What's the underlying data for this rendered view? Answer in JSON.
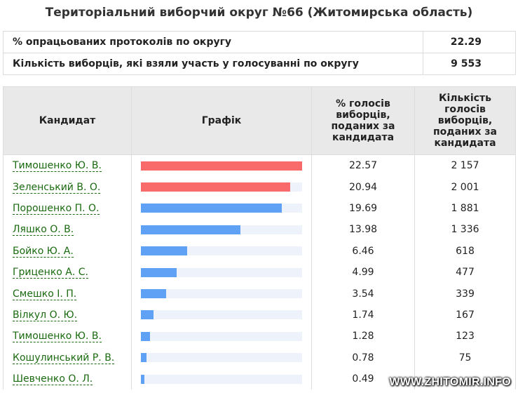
{
  "title": "Територіальний виборчий округ №66 (Житомирська область)",
  "summary": [
    {
      "label": "% опрацьованих протоколів по округу",
      "value": "22.29"
    },
    {
      "label": "Кількість виборців, які взяли участь у голосуванні по округу",
      "value": "9 553"
    }
  ],
  "headers": {
    "candidate": "Кандидат",
    "chart": "Графік",
    "percent": "% голосів виборців, поданих за кандидата",
    "count": "Кількість голосів виборців, поданих за кандидата"
  },
  "colors": {
    "leader": "#f96a6a",
    "other": "#5ea1f5",
    "track": "#eef3fb",
    "link": "#1a6a10"
  },
  "scale_max": 22.57,
  "rows": [
    {
      "name": "Тимошенко Ю. В.",
      "percent": "22.57",
      "votes": "2 157",
      "leader": true
    },
    {
      "name": "Зеленський В. О.",
      "percent": "20.94",
      "votes": "2 001",
      "leader": true
    },
    {
      "name": "Порошенко П. О.",
      "percent": "19.69",
      "votes": "1 881",
      "leader": false
    },
    {
      "name": "Ляшко О. В.",
      "percent": "13.98",
      "votes": "1 336",
      "leader": false
    },
    {
      "name": "Бойко Ю. А.",
      "percent": "6.46",
      "votes": "618",
      "leader": false
    },
    {
      "name": "Гриценко А. С.",
      "percent": "4.99",
      "votes": "477",
      "leader": false
    },
    {
      "name": "Смешко І. П.",
      "percent": "3.54",
      "votes": "339",
      "leader": false
    },
    {
      "name": "Вілкул О. Ю.",
      "percent": "1.74",
      "votes": "167",
      "leader": false
    },
    {
      "name": "Тимошенко Ю. В.",
      "percent": "1.28",
      "votes": "123",
      "leader": false
    },
    {
      "name": "Кошулинський Р. В.",
      "percent": "0.78",
      "votes": "75",
      "leader": false
    },
    {
      "name": "Шевченко О. Л.",
      "percent": "0.49",
      "votes": "",
      "leader": false
    }
  ],
  "watermark": "WWW.ZHITOMIR.INFO"
}
